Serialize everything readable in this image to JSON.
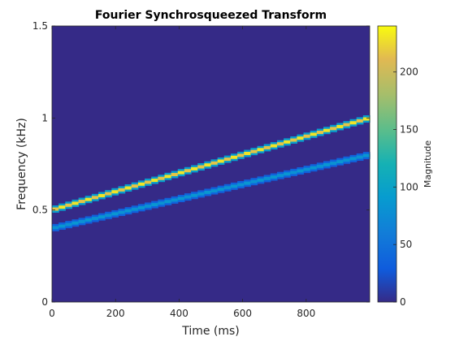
{
  "chart_data": {
    "type": "heatmap",
    "title": "Fourier Synchrosqueezed Transform",
    "xlabel": "Time (ms)",
    "ylabel": "Frequency (kHz)",
    "xlim": [
      0,
      1000
    ],
    "ylim": [
      0,
      1.5
    ],
    "xticks": [
      0,
      200,
      400,
      600,
      800
    ],
    "xtick_labels": [
      "0",
      "200",
      "400",
      "600",
      "800"
    ],
    "yticks": [
      0,
      0.5,
      1,
      1.5
    ],
    "ytick_labels": [
      "0",
      "0.5",
      "1",
      "1.5"
    ],
    "colorbar": {
      "label": "Magnitude",
      "range": [
        0,
        240
      ],
      "ticks": [
        0,
        50,
        100,
        150,
        200
      ],
      "tick_labels": [
        "0",
        "50",
        "100",
        "150",
        "200"
      ],
      "colormap": "parula"
    },
    "background_magnitude": 0,
    "series": [
      {
        "x": [
          0,
          1000
        ],
        "y": [
          0.5,
          1.0
        ],
        "magnitude": 230
      },
      {
        "x": [
          0,
          1000
        ],
        "y": [
          0.4,
          0.8
        ],
        "magnitude": 85
      }
    ],
    "grid": false
  }
}
